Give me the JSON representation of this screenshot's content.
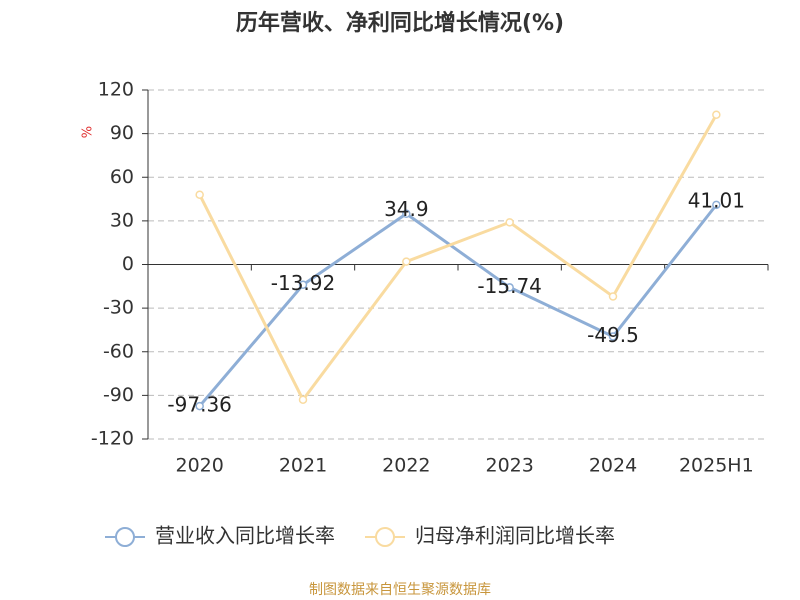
{
  "chart_data": {
    "type": "line",
    "title": "历年营收、净利同比增长情况(%)",
    "y_label": "%",
    "categories": [
      "2020",
      "2021",
      "2022",
      "2023",
      "2024",
      "2025H1"
    ],
    "series": [
      {
        "name": "营业收入同比增长率",
        "color": "#8eaed6",
        "values": [
          -97.36,
          -13.92,
          34.9,
          -15.74,
          -49.5,
          41.01
        ],
        "show_labels": true
      },
      {
        "name": "归母净利润同比增长率",
        "color": "#f9dba0",
        "values": [
          48,
          -93,
          2,
          29,
          -22,
          103
        ],
        "show_labels": false
      }
    ],
    "ylim": [
      -120,
      120
    ],
    "yticks": [
      -120,
      -90,
      -60,
      -30,
      0,
      30,
      60,
      90,
      120
    ],
    "grid": true,
    "source": "制图数据来自恒生聚源数据库"
  }
}
